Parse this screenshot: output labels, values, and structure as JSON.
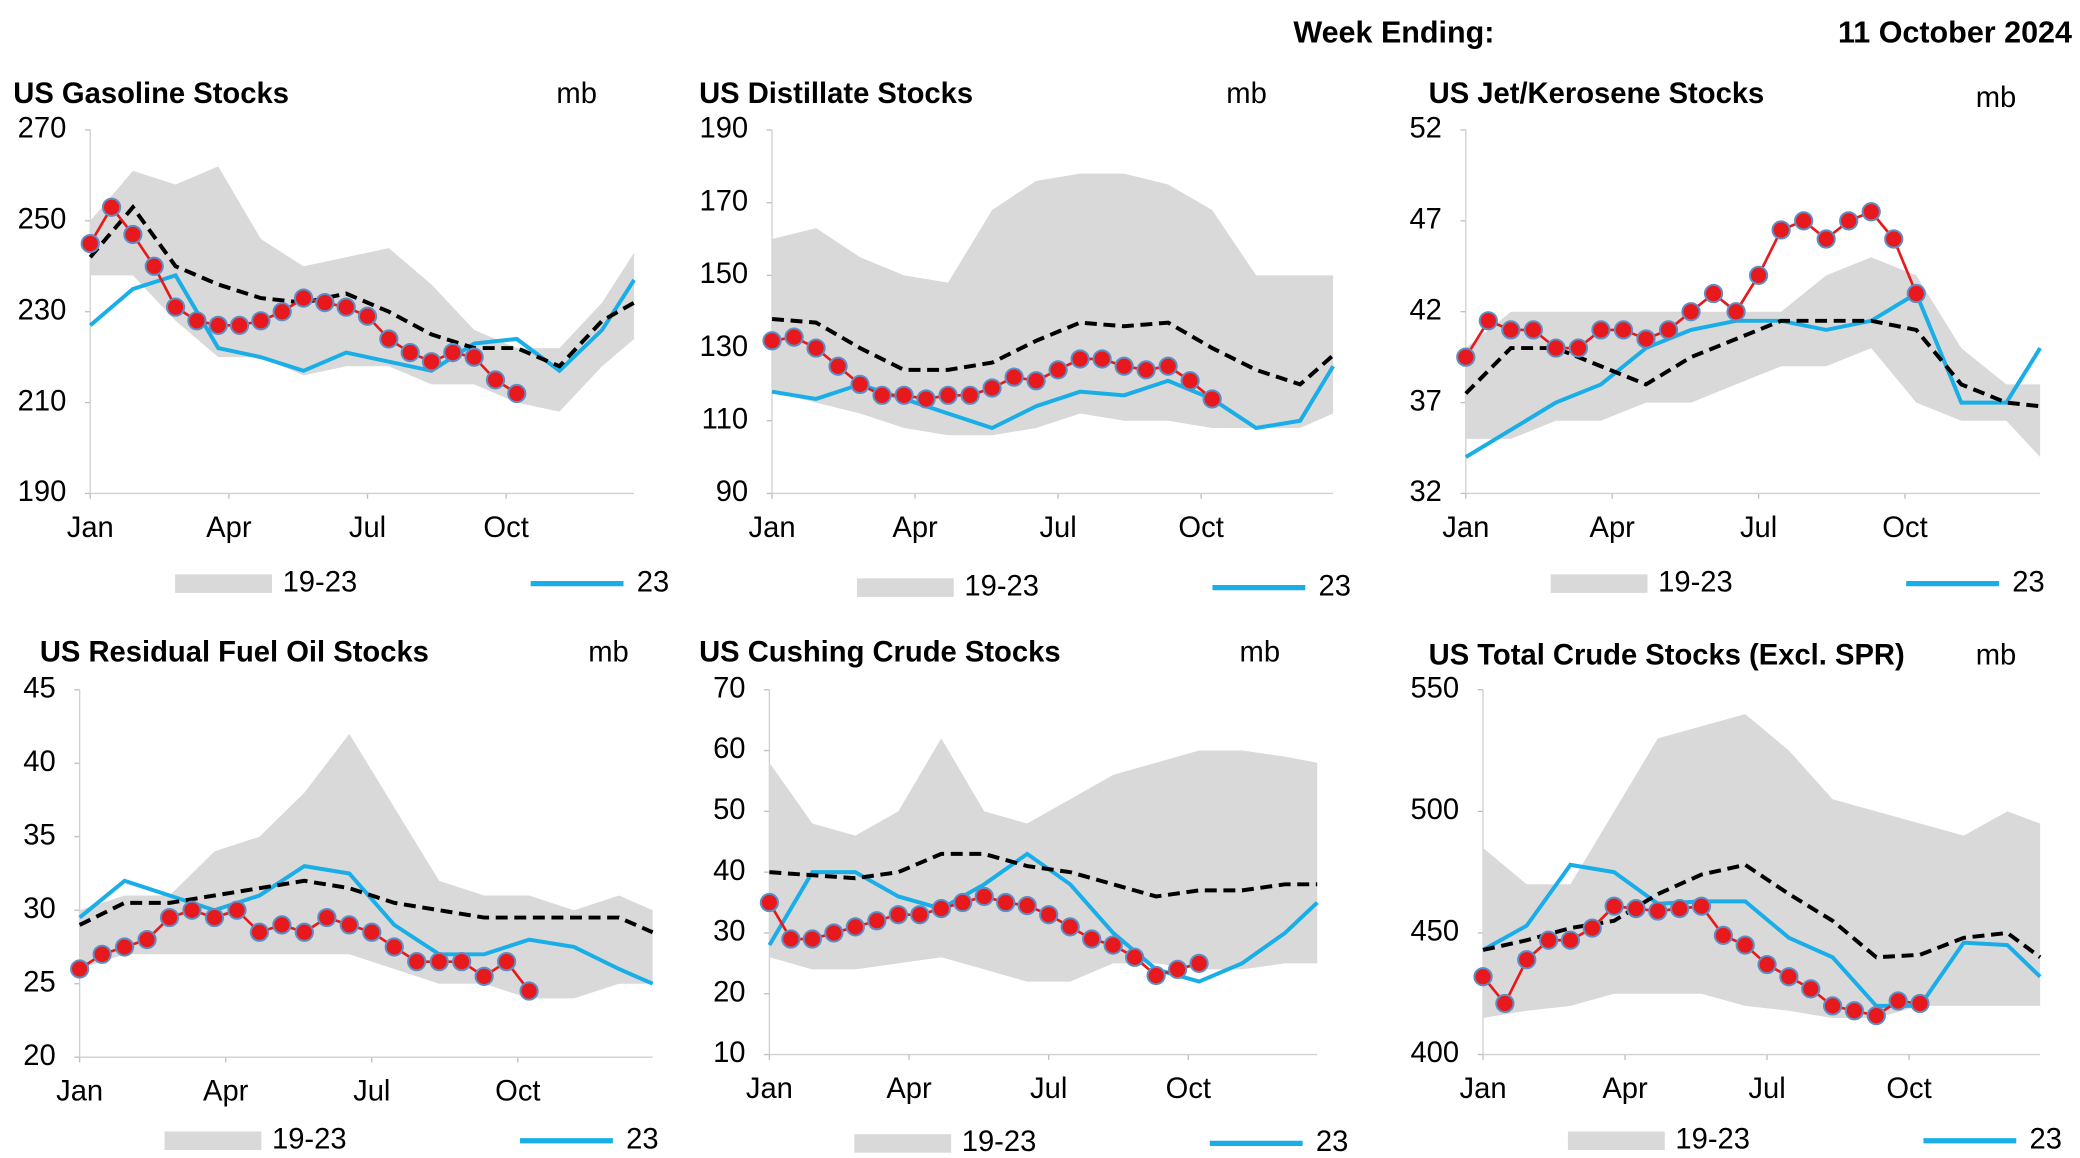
{
  "header": {
    "label": "Week Ending:",
    "date": "11 October 2024"
  },
  "chart_data": [
    {
      "type": "line",
      "title": "US Gasoline Stocks",
      "unit": "mb",
      "ylim": [
        190,
        270
      ],
      "yticks": [
        190,
        210,
        230,
        250,
        270
      ],
      "xlim": [
        1,
        52
      ],
      "xticks": [
        {
          "value": 1,
          "label": "Jan"
        },
        {
          "value": 14,
          "label": "Apr"
        },
        {
          "value": 27,
          "label": "Jul"
        },
        {
          "value": 40,
          "label": "Oct"
        }
      ],
      "x": [
        1,
        5,
        9,
        13,
        17,
        21,
        25,
        29,
        33,
        37,
        41,
        45,
        49,
        52
      ],
      "series": [
        {
          "name": "19-23",
          "style": "band",
          "color": "#d9d9d9",
          "high": [
            250,
            261,
            258,
            262,
            246,
            240,
            242,
            244,
            236,
            226,
            222,
            222,
            232,
            243
          ],
          "low": [
            238,
            238,
            228,
            220,
            220,
            216,
            218,
            218,
            214,
            214,
            210,
            208,
            218,
            224
          ]
        },
        {
          "name": "23",
          "style": "line",
          "color": "#1aaee8",
          "values": [
            227,
            235,
            238,
            222,
            220,
            217,
            221,
            219,
            217,
            223,
            224,
            217,
            226,
            237
          ]
        },
        {
          "style": "dashed",
          "color": "#000000",
          "values": [
            242,
            253,
            240,
            236,
            233,
            232,
            234,
            230,
            225,
            222,
            222,
            218,
            228,
            232
          ]
        },
        {
          "style": "dots",
          "color": "#e8191c",
          "x": [
            1,
            3,
            5,
            7,
            9,
            11,
            13,
            15,
            17,
            19,
            21,
            23,
            25,
            27,
            29,
            31,
            33,
            35,
            37,
            39,
            41
          ],
          "values": [
            245,
            253,
            247,
            240,
            231,
            228,
            227,
            227,
            228,
            230,
            233,
            232,
            231,
            229,
            224,
            221,
            219,
            221,
            220,
            215,
            212
          ]
        }
      ]
    },
    {
      "type": "line",
      "title": "US Distillate Stocks",
      "unit": "mb",
      "ylim": [
        90,
        190
      ],
      "yticks": [
        90,
        110,
        130,
        150,
        170,
        190
      ],
      "xlim": [
        1,
        52
      ],
      "xticks": [
        {
          "value": 1,
          "label": "Jan"
        },
        {
          "value": 14,
          "label": "Apr"
        },
        {
          "value": 27,
          "label": "Jul"
        },
        {
          "value": 40,
          "label": "Oct"
        }
      ],
      "x": [
        1,
        5,
        9,
        13,
        17,
        21,
        25,
        29,
        33,
        37,
        41,
        45,
        49,
        52
      ],
      "series": [
        {
          "name": "19-23",
          "style": "band",
          "color": "#d9d9d9",
          "high": [
            160,
            163,
            155,
            150,
            148,
            168,
            176,
            178,
            178,
            175,
            168,
            150,
            150,
            150
          ],
          "low": [
            118,
            115,
            112,
            108,
            106,
            106,
            108,
            112,
            110,
            110,
            108,
            108,
            108,
            112
          ]
        },
        {
          "name": "23",
          "style": "line",
          "color": "#1aaee8",
          "values": [
            118,
            116,
            120,
            116,
            112,
            108,
            114,
            118,
            117,
            121,
            116,
            108,
            110,
            125
          ]
        },
        {
          "style": "dashed",
          "color": "#000000",
          "values": [
            138,
            137,
            130,
            124,
            124,
            126,
            132,
            137,
            136,
            137,
            130,
            124,
            120,
            128
          ]
        },
        {
          "style": "dots",
          "color": "#e8191c",
          "x": [
            1,
            3,
            5,
            7,
            9,
            11,
            13,
            15,
            17,
            19,
            21,
            23,
            25,
            27,
            29,
            31,
            33,
            35,
            37,
            39,
            41
          ],
          "values": [
            132,
            133,
            130,
            125,
            120,
            117,
            117,
            116,
            117,
            117,
            119,
            122,
            121,
            124,
            127,
            127,
            125,
            124,
            125,
            121,
            116
          ]
        }
      ]
    },
    {
      "type": "line",
      "title": "US Jet/Kerosene Stocks",
      "unit": "mb",
      "ylim": [
        32,
        52
      ],
      "yticks": [
        32,
        37,
        42,
        47,
        52
      ],
      "xlim": [
        1,
        52
      ],
      "xticks": [
        {
          "value": 1,
          "label": "Jan"
        },
        {
          "value": 14,
          "label": "Apr"
        },
        {
          "value": 27,
          "label": "Jul"
        },
        {
          "value": 40,
          "label": "Oct"
        }
      ],
      "x": [
        1,
        5,
        9,
        13,
        17,
        21,
        25,
        29,
        33,
        37,
        41,
        45,
        49,
        52
      ],
      "series": [
        {
          "name": "19-23",
          "style": "band",
          "color": "#d9d9d9",
          "high": [
            40,
            42,
            42,
            42,
            42,
            42,
            42,
            42,
            44,
            45,
            44,
            40,
            38,
            38
          ],
          "low": [
            35,
            35,
            36,
            36,
            37,
            37,
            38,
            39,
            39,
            40,
            37,
            36,
            36,
            34
          ]
        },
        {
          "name": "23",
          "style": "line",
          "color": "#1aaee8",
          "values": [
            34,
            35.5,
            37,
            38,
            40,
            41,
            41.5,
            41.5,
            41,
            41.5,
            43,
            37,
            37,
            40
          ]
        },
        {
          "style": "dashed",
          "color": "#000000",
          "values": [
            37.5,
            40,
            40,
            39,
            38,
            39.5,
            40.5,
            41.5,
            41.5,
            41.5,
            41,
            38,
            37,
            36.8
          ]
        },
        {
          "style": "dots",
          "color": "#e8191c",
          "x": [
            1,
            3,
            5,
            7,
            9,
            11,
            13,
            15,
            17,
            19,
            21,
            23,
            25,
            27,
            29,
            31,
            33,
            35,
            37,
            39,
            41
          ],
          "values": [
            39.5,
            41.5,
            41,
            41,
            40,
            40,
            41,
            41,
            40.5,
            41,
            42,
            43,
            42,
            44,
            46.5,
            47,
            46,
            47,
            47.5,
            46,
            43
          ]
        }
      ]
    },
    {
      "type": "line",
      "title": "US Residual Fuel Oil Stocks",
      "unit": "mb",
      "ylim": [
        20,
        45
      ],
      "yticks": [
        20,
        25,
        30,
        35,
        40,
        45
      ],
      "xlim": [
        1,
        52
      ],
      "xticks": [
        {
          "value": 1,
          "label": "Jan"
        },
        {
          "value": 14,
          "label": "Apr"
        },
        {
          "value": 27,
          "label": "Jul"
        },
        {
          "value": 40,
          "label": "Oct"
        }
      ],
      "x": [
        1,
        5,
        9,
        13,
        17,
        21,
        25,
        29,
        33,
        37,
        41,
        45,
        49,
        52
      ],
      "series": [
        {
          "name": "19-23",
          "style": "band",
          "color": "#d9d9d9",
          "high": [
            30,
            31,
            31,
            34,
            35,
            38,
            42,
            37,
            32,
            31,
            31,
            30,
            31,
            30
          ],
          "low": [
            26,
            27,
            27,
            27,
            27,
            27,
            27,
            26,
            25,
            25,
            24,
            24,
            25,
            25
          ]
        },
        {
          "name": "23",
          "style": "line",
          "color": "#1aaee8",
          "values": [
            29.5,
            32,
            31,
            30,
            31,
            33,
            32.5,
            29,
            27,
            27,
            28,
            27.5,
            26,
            25
          ]
        },
        {
          "style": "dashed",
          "color": "#000000",
          "values": [
            29,
            30.5,
            30.5,
            31,
            31.5,
            32,
            31.5,
            30.5,
            30,
            29.5,
            29.5,
            29.5,
            29.5,
            28.5
          ]
        },
        {
          "style": "dots",
          "color": "#e8191c",
          "x": [
            1,
            3,
            5,
            7,
            9,
            11,
            13,
            15,
            17,
            19,
            21,
            23,
            25,
            27,
            29,
            31,
            33,
            35,
            37,
            39,
            41
          ],
          "values": [
            26,
            27,
            27.5,
            28,
            29.5,
            30,
            29.5,
            30,
            28.5,
            29,
            28.5,
            29.5,
            29,
            28.5,
            27.5,
            26.5,
            26.5,
            26.5,
            25.5,
            26.5,
            24.5
          ]
        }
      ]
    },
    {
      "type": "line",
      "title": "US Cushing Crude Stocks",
      "unit": "mb",
      "ylim": [
        10,
        70
      ],
      "yticks": [
        10,
        20,
        30,
        40,
        50,
        60,
        70
      ],
      "xlim": [
        1,
        52
      ],
      "xticks": [
        {
          "value": 1,
          "label": "Jan"
        },
        {
          "value": 14,
          "label": "Apr"
        },
        {
          "value": 27,
          "label": "Jul"
        },
        {
          "value": 40,
          "label": "Oct"
        }
      ],
      "x": [
        1,
        5,
        9,
        13,
        17,
        21,
        25,
        29,
        33,
        37,
        41,
        45,
        49,
        52
      ],
      "series": [
        {
          "name": "19-23",
          "style": "band",
          "color": "#d9d9d9",
          "high": [
            58,
            48,
            46,
            50,
            62,
            50,
            48,
            52,
            56,
            58,
            60,
            60,
            59,
            58
          ],
          "low": [
            26,
            24,
            24,
            25,
            26,
            24,
            22,
            22,
            25,
            25,
            24,
            24,
            25,
            25
          ]
        },
        {
          "name": "23",
          "style": "line",
          "color": "#1aaee8",
          "values": [
            28,
            40,
            40,
            36,
            34,
            38,
            43,
            38,
            30,
            24,
            22,
            25,
            30,
            35
          ]
        },
        {
          "style": "dashed",
          "color": "#000000",
          "values": [
            40,
            39.5,
            39,
            40,
            43,
            43,
            41,
            40,
            38,
            36,
            37,
            37,
            38,
            38
          ]
        },
        {
          "style": "dots",
          "color": "#e8191c",
          "x": [
            1,
            3,
            5,
            7,
            9,
            11,
            13,
            15,
            17,
            19,
            21,
            23,
            25,
            27,
            29,
            31,
            33,
            35,
            37,
            39,
            41
          ],
          "values": [
            35,
            29,
            29,
            30,
            31,
            32,
            33,
            33,
            34,
            35,
            36,
            35,
            34.5,
            33,
            31,
            29,
            28,
            26,
            23,
            24,
            25
          ]
        }
      ]
    },
    {
      "type": "line",
      "title": "US Total Crude Stocks (Excl. SPR)",
      "unit": "mb",
      "ylim": [
        400,
        550
      ],
      "yticks": [
        400,
        450,
        500,
        550
      ],
      "xlim": [
        1,
        52
      ],
      "xticks": [
        {
          "value": 1,
          "label": "Jan"
        },
        {
          "value": 14,
          "label": "Apr"
        },
        {
          "value": 27,
          "label": "Jul"
        },
        {
          "value": 40,
          "label": "Oct"
        }
      ],
      "x": [
        1,
        5,
        9,
        13,
        17,
        21,
        25,
        29,
        33,
        37,
        41,
        45,
        49,
        52
      ],
      "series": [
        {
          "name": "19-23",
          "style": "band",
          "color": "#d9d9d9",
          "high": [
            485,
            470,
            470,
            500,
            530,
            535,
            540,
            525,
            505,
            500,
            495,
            490,
            500,
            495
          ],
          "low": [
            415,
            418,
            420,
            425,
            425,
            425,
            420,
            418,
            415,
            415,
            420,
            420,
            420,
            420
          ]
        },
        {
          "name": "23",
          "style": "line",
          "color": "#1aaee8",
          "values": [
            443,
            453,
            478,
            475,
            462,
            463,
            463,
            448,
            440,
            420,
            420,
            446,
            445,
            432
          ]
        },
        {
          "style": "dashed",
          "color": "#000000",
          "values": [
            443,
            447,
            452,
            455,
            466,
            474,
            478,
            466,
            455,
            440,
            441,
            448,
            450,
            440
          ]
        },
        {
          "style": "dots",
          "color": "#e8191c",
          "x": [
            1,
            3,
            5,
            7,
            9,
            11,
            13,
            15,
            17,
            19,
            21,
            23,
            25,
            27,
            29,
            31,
            33,
            35,
            37,
            39,
            41
          ],
          "values": [
            432,
            421,
            439,
            447,
            447,
            452,
            461,
            460,
            459,
            460,
            461,
            449,
            445,
            437,
            432,
            427,
            420,
            418,
            416,
            422,
            421
          ]
        }
      ]
    }
  ]
}
